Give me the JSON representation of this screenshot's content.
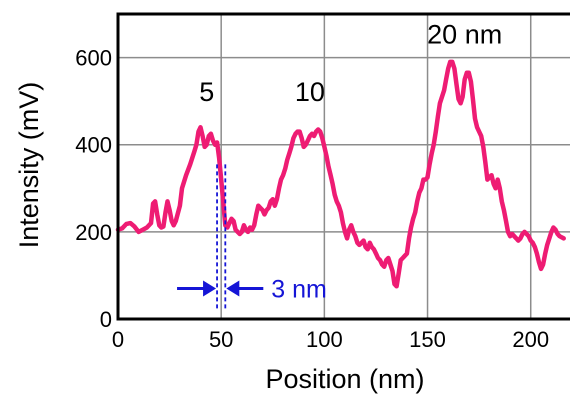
{
  "chart_data": {
    "type": "line",
    "xlabel": "Position (nm)",
    "ylabel": "Intensity (mV)",
    "xlim": [
      0,
      220
    ],
    "ylim": [
      0,
      700
    ],
    "x_ticks": [
      {
        "value": 0,
        "label": "0"
      },
      {
        "value": 50,
        "label": "50"
      },
      {
        "value": 100,
        "label": "100"
      },
      {
        "value": 150,
        "label": "150"
      },
      {
        "value": 200,
        "label": "200"
      }
    ],
    "y_ticks": [
      {
        "value": 0,
        "label": "0"
      },
      {
        "value": 200,
        "label": "200"
      },
      {
        "value": 400,
        "label": "400"
      },
      {
        "value": 600,
        "label": "600"
      }
    ],
    "grid": true,
    "series": [
      {
        "color": "#ee1c73",
        "points": [
          [
            0,
            205
          ],
          [
            2,
            208
          ],
          [
            4,
            218
          ],
          [
            6,
            220
          ],
          [
            8,
            212
          ],
          [
            10,
            200
          ],
          [
            12,
            205
          ],
          [
            14,
            210
          ],
          [
            16,
            220
          ],
          [
            17,
            265
          ],
          [
            18,
            270
          ],
          [
            19,
            240
          ],
          [
            20,
            215
          ],
          [
            21,
            210
          ],
          [
            22,
            212
          ],
          [
            23,
            245
          ],
          [
            24,
            270
          ],
          [
            25,
            250
          ],
          [
            26,
            225
          ],
          [
            27,
            215
          ],
          [
            28,
            225
          ],
          [
            30,
            260
          ],
          [
            31,
            300
          ],
          [
            33,
            330
          ],
          [
            35,
            355
          ],
          [
            37,
            385
          ],
          [
            38,
            400
          ],
          [
            39,
            430
          ],
          [
            40,
            440
          ],
          [
            41,
            420
          ],
          [
            42,
            395
          ],
          [
            43,
            400
          ],
          [
            44,
            420
          ],
          [
            45,
            425
          ],
          [
            46,
            410
          ],
          [
            47,
            400
          ],
          [
            48,
            405
          ],
          [
            49,
            370
          ],
          [
            50,
            320
          ],
          [
            51,
            270
          ],
          [
            52,
            215
          ],
          [
            53,
            210
          ],
          [
            54,
            220
          ],
          [
            55,
            230
          ],
          [
            56,
            225
          ],
          [
            57,
            205
          ],
          [
            58,
            200
          ],
          [
            59,
            195
          ],
          [
            60,
            200
          ],
          [
            61,
            215
          ],
          [
            62,
            205
          ],
          [
            63,
            200
          ],
          [
            64,
            210
          ],
          [
            65,
            205
          ],
          [
            66,
            215
          ],
          [
            67,
            240
          ],
          [
            68,
            260
          ],
          [
            69,
            255
          ],
          [
            70,
            250
          ],
          [
            71,
            240
          ],
          [
            72,
            250
          ],
          [
            73,
            255
          ],
          [
            74,
            270
          ],
          [
            75,
            275
          ],
          [
            76,
            260
          ],
          [
            77,
            275
          ],
          [
            78,
            300
          ],
          [
            79,
            320
          ],
          [
            80,
            330
          ],
          [
            81,
            345
          ],
          [
            82,
            365
          ],
          [
            83,
            380
          ],
          [
            84,
            395
          ],
          [
            85,
            415
          ],
          [
            86,
            425
          ],
          [
            87,
            430
          ],
          [
            88,
            430
          ],
          [
            89,
            415
          ],
          [
            90,
            395
          ],
          [
            91,
            400
          ],
          [
            92,
            410
          ],
          [
            93,
            420
          ],
          [
            94,
            425
          ],
          [
            95,
            420
          ],
          [
            96,
            430
          ],
          [
            97,
            435
          ],
          [
            98,
            430
          ],
          [
            99,
            415
          ],
          [
            100,
            395
          ],
          [
            101,
            375
          ],
          [
            102,
            350
          ],
          [
            103,
            330
          ],
          [
            104,
            310
          ],
          [
            105,
            285
          ],
          [
            106,
            270
          ],
          [
            107,
            260
          ],
          [
            108,
            245
          ],
          [
            109,
            220
          ],
          [
            110,
            200
          ],
          [
            111,
            185
          ],
          [
            112,
            205
          ],
          [
            113,
            215
          ],
          [
            114,
            200
          ],
          [
            115,
            190
          ],
          [
            116,
            175
          ],
          [
            117,
            170
          ],
          [
            118,
            175
          ],
          [
            119,
            180
          ],
          [
            120,
            165
          ],
          [
            121,
            160
          ],
          [
            122,
            175
          ],
          [
            123,
            165
          ],
          [
            124,
            160
          ],
          [
            125,
            150
          ],
          [
            126,
            140
          ],
          [
            127,
            135
          ],
          [
            128,
            125
          ],
          [
            129,
            120
          ],
          [
            130,
            135
          ],
          [
            131,
            140
          ],
          [
            132,
            125
          ],
          [
            133,
            110
          ],
          [
            134,
            80
          ],
          [
            135,
            75
          ],
          [
            136,
            105
          ],
          [
            137,
            135
          ],
          [
            138,
            140
          ],
          [
            139,
            145
          ],
          [
            140,
            150
          ],
          [
            141,
            185
          ],
          [
            142,
            210
          ],
          [
            143,
            230
          ],
          [
            144,
            245
          ],
          [
            145,
            270
          ],
          [
            146,
            290
          ],
          [
            147,
            300
          ],
          [
            148,
            320
          ],
          [
            149,
            320
          ],
          [
            150,
            325
          ],
          [
            151,
            355
          ],
          [
            152,
            380
          ],
          [
            153,
            400
          ],
          [
            154,
            430
          ],
          [
            155,
            465
          ],
          [
            156,
            495
          ],
          [
            157,
            510
          ],
          [
            158,
            525
          ],
          [
            159,
            550
          ],
          [
            160,
            575
          ],
          [
            161,
            590
          ],
          [
            162,
            590
          ],
          [
            163,
            575
          ],
          [
            164,
            540
          ],
          [
            165,
            505
          ],
          [
            166,
            495
          ],
          [
            167,
            510
          ],
          [
            168,
            550
          ],
          [
            169,
            565
          ],
          [
            170,
            565
          ],
          [
            171,
            545
          ],
          [
            172,
            505
          ],
          [
            173,
            460
          ],
          [
            174,
            440
          ],
          [
            175,
            430
          ],
          [
            176,
            420
          ],
          [
            177,
            395
          ],
          [
            178,
            360
          ],
          [
            179,
            320
          ],
          [
            180,
            325
          ],
          [
            181,
            330
          ],
          [
            182,
            310
          ],
          [
            183,
            300
          ],
          [
            184,
            320
          ],
          [
            185,
            300
          ],
          [
            186,
            270
          ],
          [
            187,
            250
          ],
          [
            188,
            225
          ],
          [
            189,
            200
          ],
          [
            190,
            190
          ],
          [
            191,
            195
          ],
          [
            192,
            190
          ],
          [
            193,
            185
          ],
          [
            194,
            180
          ],
          [
            195,
            185
          ],
          [
            196,
            195
          ],
          [
            197,
            200
          ],
          [
            198,
            195
          ],
          [
            199,
            190
          ],
          [
            200,
            180
          ],
          [
            201,
            175
          ],
          [
            202,
            165
          ],
          [
            203,
            150
          ],
          [
            204,
            130
          ],
          [
            205,
            115
          ],
          [
            206,
            125
          ],
          [
            207,
            150
          ],
          [
            208,
            170
          ],
          [
            209,
            185
          ],
          [
            210,
            200
          ],
          [
            211,
            210
          ],
          [
            212,
            205
          ],
          [
            213,
            195
          ],
          [
            214,
            190
          ],
          [
            216,
            185
          ]
        ]
      }
    ],
    "annotations": [
      {
        "text": "5",
        "x": 43,
        "y": 500
      },
      {
        "text": "10",
        "x": 93,
        "y": 500
      },
      {
        "text": "20 nm",
        "x": 168,
        "y": 632
      }
    ],
    "measurement": {
      "label": "3 nm",
      "from_x": 48,
      "to_x": 52,
      "color": "#1515d6"
    }
  }
}
